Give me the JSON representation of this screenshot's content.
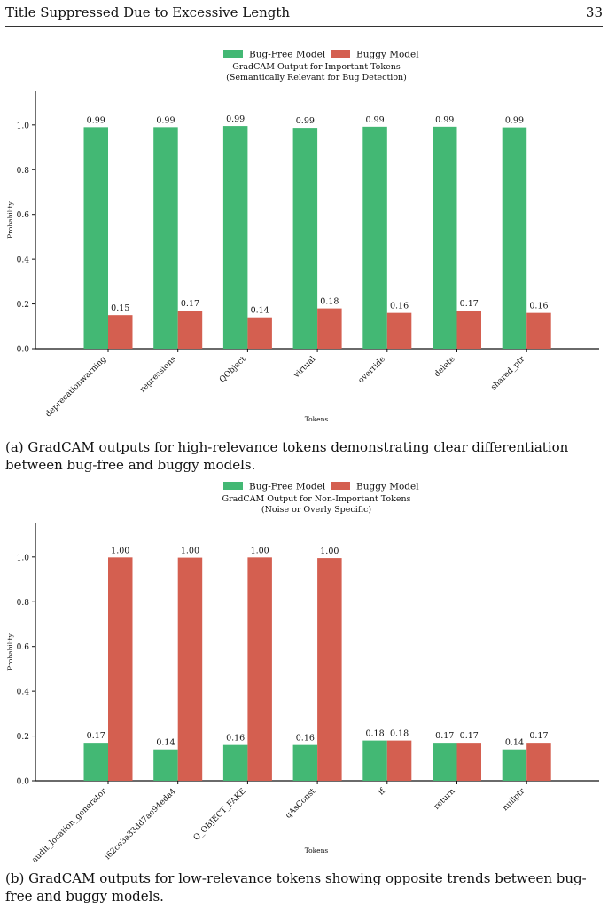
{
  "page": {
    "running_title": "Title Suppressed Due to Excessive Length",
    "page_number": "33"
  },
  "colors": {
    "bug_free": "#43b874",
    "buggy": "#d45f50"
  },
  "captions": {
    "a": "(a) GradCAM outputs for high-relevance tokens demonstrating clear differentiation between bug-free and buggy models.",
    "b": "(b) GradCAM outputs for low-relevance tokens showing opposite trends between bug-free and buggy models."
  },
  "chart_data": [
    {
      "type": "bar",
      "title": "GradCAM Output for Important Tokens",
      "subtitle": "(Semantically Relevant for Bug Detection)",
      "xlabel": "Tokens",
      "ylabel": "Probability",
      "ylim": [
        0,
        1.15
      ],
      "yticks": [
        "0.0",
        "0.2",
        "0.4",
        "0.6",
        "0.8",
        "1.0"
      ],
      "legend_position": "top-center",
      "categories": [
        "deprecationwarning",
        "regressions",
        "QObject",
        "virtual",
        "override",
        "delete",
        "shared_ptr"
      ],
      "series": [
        {
          "name": "Bug-Free Model",
          "values": [
            0.99,
            0.99,
            0.995,
            0.987,
            0.992,
            0.992,
            0.989
          ],
          "labels": [
            "0.99",
            "0.99",
            "0.99",
            "0.99",
            "0.99",
            "0.99",
            "0.99"
          ]
        },
        {
          "name": "Buggy Model",
          "values": [
            0.15,
            0.17,
            0.14,
            0.18,
            0.16,
            0.17,
            0.16
          ],
          "labels": [
            "0.15",
            "0.17",
            "0.14",
            "0.18",
            "0.16",
            "0.17",
            "0.16"
          ]
        }
      ]
    },
    {
      "type": "bar",
      "title": "GradCAM Output for Non-Important Tokens",
      "subtitle": "(Noise or Overly Specific)",
      "xlabel": "Tokens",
      "ylabel": "Probability",
      "ylim": [
        0,
        1.15
      ],
      "yticks": [
        "0.0",
        "0.2",
        "0.4",
        "0.6",
        "0.8",
        "1.0"
      ],
      "legend_position": "top-center",
      "categories": [
        "audit_location_generator",
        "i62ce3a33dd7ae94eda4",
        "Q_OBJECT_FAKE",
        "qAsConst",
        "if",
        "return",
        "nullptr"
      ],
      "series": [
        {
          "name": "Bug-Free Model",
          "values": [
            0.17,
            0.14,
            0.16,
            0.16,
            0.18,
            0.17,
            0.14
          ],
          "labels": [
            "0.17",
            "0.14",
            "0.16",
            "0.16",
            "0.18",
            "0.17",
            "0.14"
          ]
        },
        {
          "name": "Buggy Model",
          "values": [
            0.998,
            0.997,
            0.998,
            0.995,
            0.18,
            0.17,
            0.17
          ],
          "labels": [
            "1.00",
            "1.00",
            "1.00",
            "1.00",
            "0.18",
            "0.17",
            "0.17"
          ]
        }
      ]
    }
  ]
}
